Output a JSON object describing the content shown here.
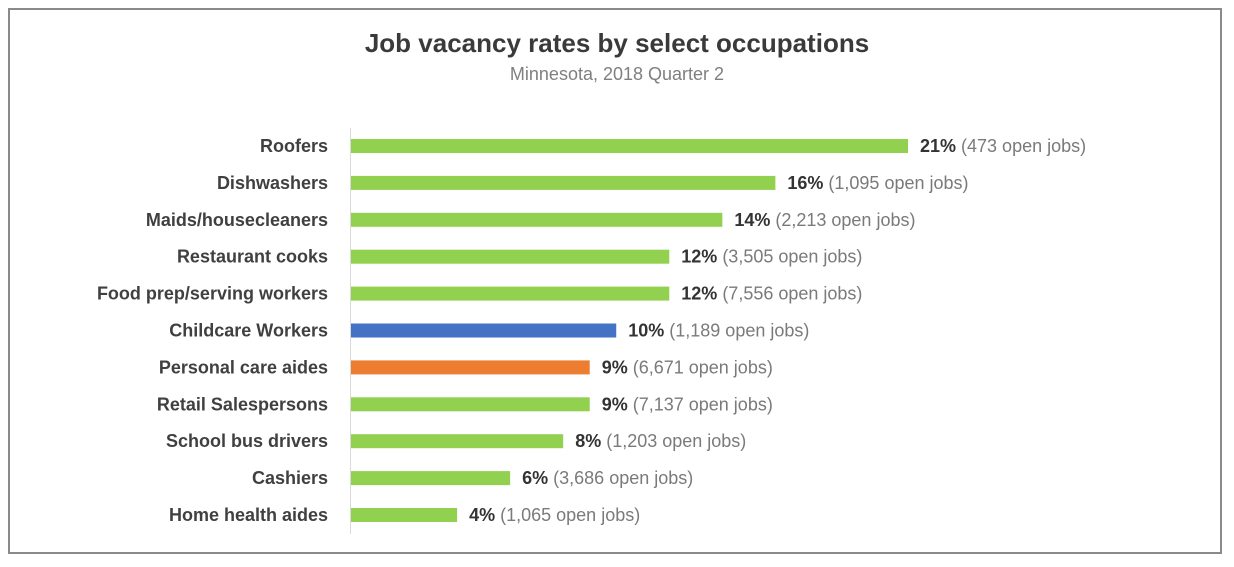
{
  "chart_data": {
    "type": "bar",
    "orientation": "horizontal",
    "title": "Job vacancy rates by select occupations",
    "subtitle": "Minnesota, 2018 Quarter 2",
    "categories": [
      "Roofers",
      "Dishwashers",
      "Maids/housecleaners",
      "Restaurant cooks",
      "Food prep/serving workers",
      "Childcare Workers",
      "Personal care aides",
      "Retail Salespersons",
      "School bus drivers",
      "Cashiers",
      "Home health aides"
    ],
    "values": [
      21,
      16,
      14,
      12,
      12,
      10,
      9,
      9,
      8,
      6,
      4
    ],
    "value_labels": [
      "21%",
      "16%",
      "14%",
      "12%",
      "12%",
      "10%",
      "9%",
      "9%",
      "8%",
      "6%",
      "4%"
    ],
    "open_jobs_labels": [
      "(473 open jobs)",
      "(1,095 open jobs)",
      "(2,213 open jobs)",
      "(3,505 open jobs)",
      "(7,556 open jobs)",
      "(1,189 open jobs)",
      "(6,671 open jobs)",
      "(7,137 open jobs)",
      "(1,203 open jobs)",
      "(3,686 open jobs)",
      "(1,065 open jobs)"
    ],
    "bar_colors": [
      "#92d050",
      "#92d050",
      "#92d050",
      "#92d050",
      "#92d050",
      "#4472c4",
      "#ed7d31",
      "#92d050",
      "#92d050",
      "#92d050",
      "#92d050"
    ],
    "xlabel": "",
    "ylabel": "",
    "xlim": [
      0,
      21
    ],
    "grid": false,
    "legend": "none"
  }
}
